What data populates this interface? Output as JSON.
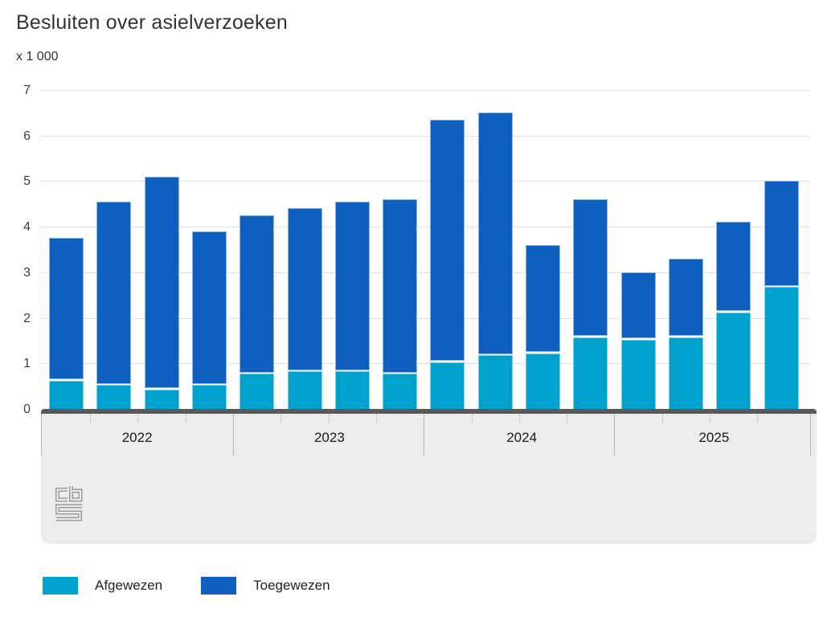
{
  "chart_data": {
    "type": "bar",
    "stacked": true,
    "title": "Besluiten over asielverzoeken",
    "unit_label": "x 1 000",
    "ylim": [
      0,
      7
    ],
    "yticks": [
      0,
      1,
      2,
      3,
      4,
      5,
      6,
      7
    ],
    "grid": true,
    "legend_position": "bottom",
    "x_year_groups": [
      "2022",
      "2023",
      "2024",
      "2025"
    ],
    "categories": [
      "2022 Q1",
      "2022 Q2",
      "2022 Q3",
      "2022 Q4",
      "2023 Q1",
      "2023 Q2",
      "2023 Q3",
      "2023 Q4",
      "2024 Q1",
      "2024 Q2",
      "2024 Q3",
      "2024 Q4",
      "2025 Q1",
      "2025 Q2",
      "2025 Q3",
      "2025 Q4"
    ],
    "series": [
      {
        "name": "Afgewezen",
        "color": "#00a1cd",
        "edge_color": "#7fd0e6",
        "values": [
          0.65,
          0.55,
          0.45,
          0.55,
          0.8,
          0.85,
          0.85,
          0.8,
          1.05,
          1.2,
          1.25,
          1.6,
          1.55,
          1.6,
          2.15,
          2.7
        ]
      },
      {
        "name": "Toegewezen",
        "color": "#0f5fc0",
        "edge_color": "#8cb8e4",
        "values": [
          3.1,
          4.0,
          4.65,
          3.35,
          3.45,
          3.55,
          3.7,
          3.8,
          5.3,
          5.3,
          2.35,
          3.0,
          1.45,
          1.7,
          1.95,
          2.3
        ]
      }
    ],
    "source_logo": "cbs-logo"
  },
  "colors": {
    "axis_band": "#58595b",
    "panel_background": "#ececec",
    "gridline": "#e0e0e0",
    "logo_gray": "#9b9b9b",
    "title_text": "#333333",
    "axis_text": "#3d3d3d"
  }
}
